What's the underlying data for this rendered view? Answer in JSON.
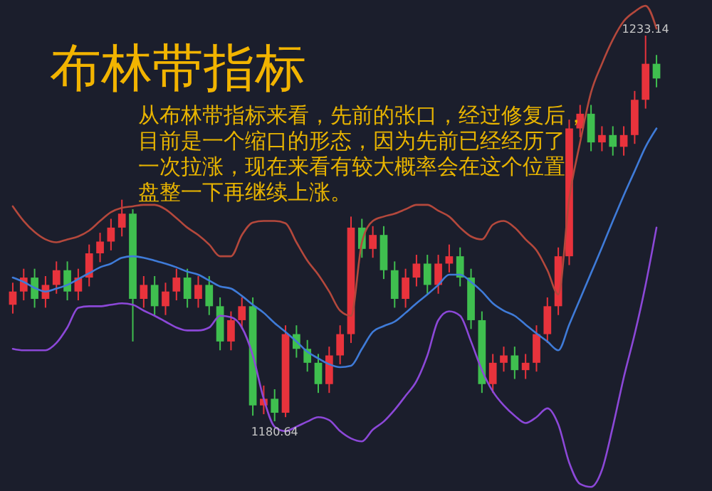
{
  "chart_data": {
    "type": "candlestick",
    "title": "布林带指标",
    "annotations": [
      "从布林带指标来看，先前的张口，经过修复后，目前是一个缩口的形态，因为先前已经经历了一次拉涨，现在来看有较大概率会在这个位置盘整一下再继续上涨。",
      {
        "text": "1233.14",
        "y": 1233.14
      },
      {
        "text": "1180.64",
        "y": 1180.64
      }
    ],
    "categories": [
      null,
      null,
      null,
      null,
      null,
      null,
      null,
      null,
      null,
      null,
      null,
      null,
      null,
      null,
      null,
      null,
      null,
      null,
      null,
      null,
      null,
      null,
      null,
      null,
      null,
      null,
      null,
      null,
      null,
      null,
      null,
      null,
      null,
      null,
      null,
      null,
      null,
      null,
      null,
      null,
      null,
      null,
      null,
      null,
      null,
      null,
      null,
      null,
      null,
      null,
      null,
      null,
      null,
      null,
      null,
      null,
      null,
      null,
      null,
      null
    ],
    "ohlc": [
      [
        1196.5,
        1199.5,
        1195.3,
        1198.3
      ],
      [
        1198.3,
        1201.4,
        1197.1,
        1200.2
      ],
      [
        1200.2,
        1201.4,
        1196.1,
        1197.3
      ],
      [
        1197.3,
        1200.4,
        1196.1,
        1199.2
      ],
      [
        1199.2,
        1202.4,
        1198.0,
        1201.2
      ],
      [
        1201.2,
        1202.4,
        1197.1,
        1198.3
      ],
      [
        1198.3,
        1201.4,
        1197.1,
        1200.2
      ],
      [
        1200.2,
        1204.7,
        1199.0,
        1203.5
      ],
      [
        1203.5,
        1206.3,
        1202.3,
        1205.1
      ],
      [
        1205.1,
        1208.2,
        1203.9,
        1207.0
      ],
      [
        1207.0,
        1210.8,
        1205.8,
        1208.9
      ],
      [
        1208.9,
        1209.5,
        1191.5,
        1197.3
      ],
      [
        1197.3,
        1200.4,
        1196.1,
        1199.2
      ],
      [
        1199.2,
        1200.4,
        1195.1,
        1196.3
      ],
      [
        1196.3,
        1199.5,
        1195.1,
        1198.3
      ],
      [
        1198.3,
        1201.4,
        1197.1,
        1200.2
      ],
      [
        1200.2,
        1201.4,
        1196.1,
        1197.3
      ],
      [
        1197.3,
        1200.4,
        1196.1,
        1199.2
      ],
      [
        1199.2,
        1200.4,
        1195.1,
        1196.3
      ],
      [
        1196.3,
        1197.5,
        1190.3,
        1191.5
      ],
      [
        1191.5,
        1195.6,
        1190.3,
        1194.4
      ],
      [
        1194.4,
        1197.5,
        1193.2,
        1196.3
      ],
      [
        1196.3,
        1197.5,
        1181.4,
        1182.8
      ],
      [
        1182.8,
        1185.5,
        1181.6,
        1183.7
      ],
      [
        1183.7,
        1185.0,
        1180.64,
        1181.8
      ],
      [
        1181.8,
        1193.7,
        1181.2,
        1192.5
      ],
      [
        1192.5,
        1193.7,
        1189.3,
        1190.5
      ],
      [
        1190.5,
        1191.7,
        1187.4,
        1188.6
      ],
      [
        1188.6,
        1189.8,
        1184.5,
        1185.7
      ],
      [
        1185.7,
        1190.8,
        1184.5,
        1189.6
      ],
      [
        1189.6,
        1193.7,
        1188.4,
        1192.5
      ],
      [
        1192.5,
        1208.5,
        1191.3,
        1207.0
      ],
      [
        1207.0,
        1208.2,
        1202.9,
        1204.1
      ],
      [
        1204.1,
        1207.2,
        1202.9,
        1206.0
      ],
      [
        1206.0,
        1207.2,
        1200.0,
        1201.2
      ],
      [
        1201.2,
        1202.4,
        1196.1,
        1197.3
      ],
      [
        1197.3,
        1201.4,
        1196.1,
        1200.2
      ],
      [
        1200.2,
        1203.3,
        1199.0,
        1202.1
      ],
      [
        1202.1,
        1203.3,
        1198.0,
        1199.2
      ],
      [
        1199.2,
        1203.3,
        1198.0,
        1202.1
      ],
      [
        1202.1,
        1204.7,
        1200.9,
        1203.1
      ],
      [
        1203.1,
        1204.3,
        1199.0,
        1200.2
      ],
      [
        1200.2,
        1201.4,
        1193.2,
        1194.4
      ],
      [
        1194.4,
        1195.6,
        1184.5,
        1185.7
      ],
      [
        1185.7,
        1189.8,
        1184.5,
        1188.6
      ],
      [
        1188.6,
        1190.8,
        1187.4,
        1189.6
      ],
      [
        1189.6,
        1190.8,
        1186.4,
        1187.6
      ],
      [
        1187.6,
        1189.8,
        1186.4,
        1188.6
      ],
      [
        1188.6,
        1193.7,
        1187.4,
        1192.5
      ],
      [
        1192.5,
        1197.5,
        1191.3,
        1196.3
      ],
      [
        1196.3,
        1204.3,
        1195.1,
        1203.1
      ],
      [
        1203.1,
        1221.7,
        1201.9,
        1220.5
      ],
      [
        1220.5,
        1223.7,
        1219.3,
        1222.5
      ],
      [
        1222.5,
        1223.7,
        1217.4,
        1218.6
      ],
      [
        1218.6,
        1220.8,
        1217.4,
        1219.6
      ],
      [
        1219.6,
        1220.8,
        1216.8,
        1218.0
      ],
      [
        1218.0,
        1220.8,
        1216.8,
        1219.6
      ],
      [
        1219.6,
        1225.6,
        1218.4,
        1224.4
      ],
      [
        1224.4,
        1233.14,
        1223.2,
        1229.3
      ],
      [
        1229.3,
        1230.5,
        1226.1,
        1227.3
      ]
    ],
    "colors": [
      "#e8333c",
      "#e8333c",
      "#3fbf4f",
      "#e8333c",
      "#e8333c",
      "#3fbf4f",
      "#e8333c",
      "#e8333c",
      "#e8333c",
      "#e8333c",
      "#e8333c",
      "#3fbf4f",
      "#e8333c",
      "#3fbf4f",
      "#e8333c",
      "#e8333c",
      "#3fbf4f",
      "#e8333c",
      "#3fbf4f",
      "#3fbf4f",
      "#e8333c",
      "#e8333c",
      "#3fbf4f",
      "#e8333c",
      "#3fbf4f",
      "#e8333c",
      "#3fbf4f",
      "#3fbf4f",
      "#3fbf4f",
      "#e8333c",
      "#e8333c",
      "#e8333c",
      "#3fbf4f",
      "#e8333c",
      "#3fbf4f",
      "#3fbf4f",
      "#e8333c",
      "#e8333c",
      "#3fbf4f",
      "#e8333c",
      "#e8333c",
      "#3fbf4f",
      "#3fbf4f",
      "#3fbf4f",
      "#e8333c",
      "#e8333c",
      "#3fbf4f",
      "#e8333c",
      "#e8333c",
      "#e8333c",
      "#e8333c",
      "#e8333c",
      "#e8333c",
      "#3fbf4f",
      "#e8333c",
      "#3fbf4f",
      "#e8333c",
      "#e8333c",
      "#e8333c",
      "#3fbf4f"
    ],
    "series": [
      {
        "type": "line",
        "color": "#b4483c",
        "values": [
          1209.9,
          1207.9,
          1206.4,
          1205.4,
          1205.0,
          1205.4,
          1205.8,
          1206.6,
          1207.9,
          1209.1,
          1209.7,
          1209.9,
          1210.1,
          1210.1,
          1209.5,
          1208.3,
          1207.0,
          1206.0,
          1204.7,
          1203.1,
          1203.1,
          1206.0,
          1207.7,
          1207.9,
          1207.9,
          1207.6,
          1205.0,
          1202.5,
          1200.6,
          1198.3,
          1195.7,
          1195.0,
          1205.0,
          1207.9,
          1208.5,
          1208.9,
          1209.5,
          1210.1,
          1210.1,
          1209.3,
          1208.5,
          1207.0,
          1205.8,
          1205.4,
          1207.4,
          1207.9,
          1207.0,
          1205.4,
          1203.9,
          1201.2,
          1197.9,
          1210.9,
          1218.6,
          1225.4,
          1229.3,
          1232.6,
          1235.1,
          1236.4,
          1237.2,
          1234.1
        ]
      },
      {
        "type": "line",
        "color": "#3f7bd8",
        "values": [
          1200.2,
          1199.6,
          1198.8,
          1198.3,
          1198.7,
          1199.2,
          1200.0,
          1200.8,
          1201.6,
          1202.1,
          1202.9,
          1203.1,
          1202.9,
          1202.5,
          1202.1,
          1201.6,
          1201.0,
          1200.6,
          1199.8,
          1199.0,
          1198.7,
          1197.7,
          1196.5,
          1195.4,
          1194.0,
          1192.8,
          1191.5,
          1190.1,
          1189.2,
          1188.4,
          1188.0,
          1188.2,
          1190.5,
          1192.8,
          1193.6,
          1194.2,
          1195.4,
          1196.7,
          1197.9,
          1199.2,
          1200.6,
          1200.6,
          1199.6,
          1198.3,
          1196.7,
          1195.7,
          1195.0,
          1193.8,
          1192.6,
          1191.5,
          1190.3,
          1193.8,
          1197.3,
          1200.8,
          1204.3,
          1207.9,
          1211.4,
          1214.7,
          1218.0,
          1220.5
        ]
      },
      {
        "type": "line",
        "color": "#8c48d8",
        "values": [
          1190.5,
          1190.3,
          1190.3,
          1190.3,
          1191.3,
          1193.4,
          1196.1,
          1196.3,
          1196.3,
          1196.5,
          1196.7,
          1196.5,
          1195.7,
          1195.0,
          1194.2,
          1193.4,
          1193.0,
          1193.0,
          1193.4,
          1195.0,
          1194.8,
          1193.4,
          1189.6,
          1183.7,
          1179.9,
          1179.3,
          1179.9,
          1180.6,
          1181.2,
          1180.8,
          1179.3,
          1178.3,
          1177.9,
          1179.5,
          1180.6,
          1182.2,
          1184.1,
          1186.1,
          1189.6,
          1194.4,
          1195.6,
          1195.0,
          1191.5,
          1187.6,
          1184.7,
          1182.8,
          1181.4,
          1180.4,
          1181.2,
          1182.4,
          1180.2,
          1175.0,
          1172.1,
          1171.7,
          1174.0,
          1179.9,
          1186.6,
          1192.5,
          1199.2,
          1207.0
        ]
      }
    ]
  }
}
